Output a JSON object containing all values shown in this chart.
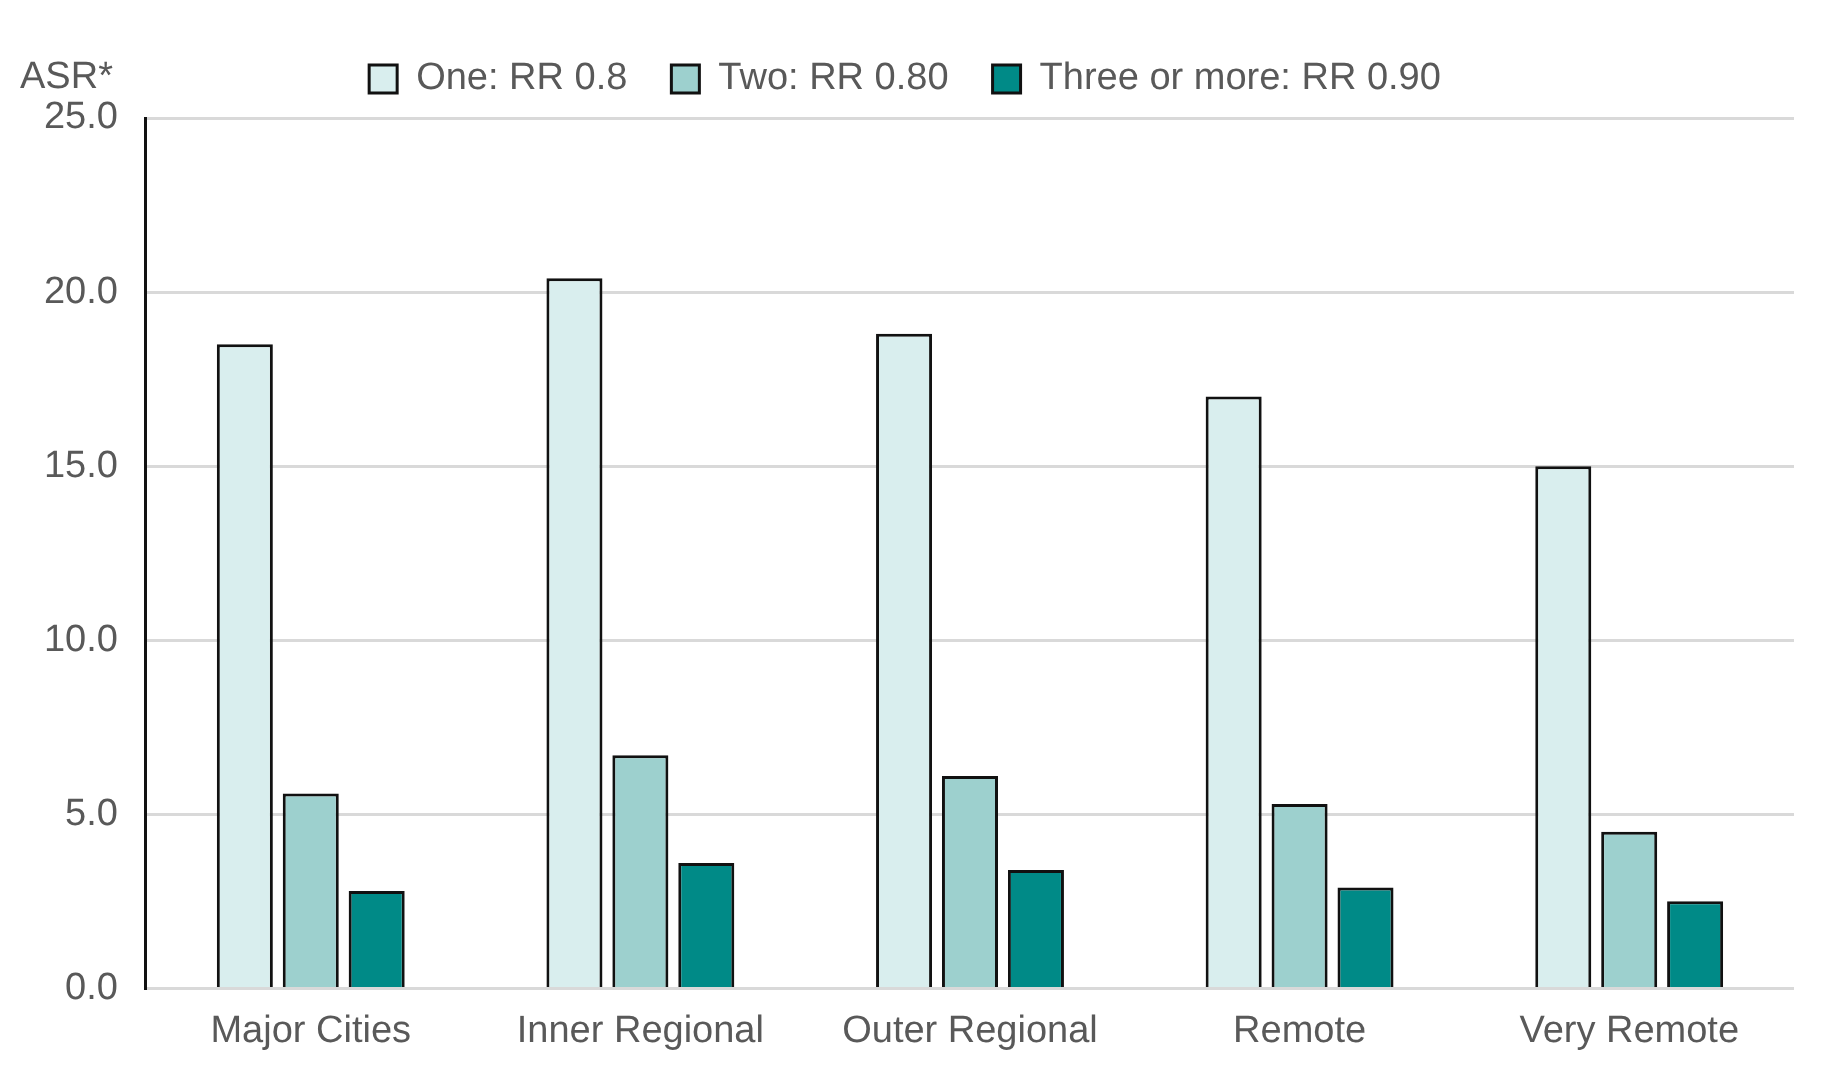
{
  "chart_data": {
    "type": "bar",
    "ylabel": "ASR*",
    "categories": [
      "Major Cities",
      "Inner Regional",
      "Outer Regional",
      "Remote",
      "Very Remote"
    ],
    "series": [
      {
        "name": "One: RR 0.8",
        "color": "#d9eeee",
        "values": [
          18.5,
          20.4,
          18.8,
          17.0,
          15.0
        ]
      },
      {
        "name": "Two: RR 0.80",
        "color": "#9dd0ce",
        "values": [
          5.6,
          6.7,
          6.1,
          5.3,
          4.5
        ]
      },
      {
        "name": "Three or more: RR 0.90",
        "color": "#008a87",
        "values": [
          2.8,
          3.6,
          3.4,
          2.9,
          2.5
        ]
      }
    ],
    "ylim": [
      0,
      25
    ],
    "yticks": [
      {
        "value": 0,
        "label": "0.0"
      },
      {
        "value": 5,
        "label": "5.0"
      },
      {
        "value": 10,
        "label": "10.0"
      },
      {
        "value": 15,
        "label": "15.0"
      },
      {
        "value": 20,
        "label": "20.0"
      },
      {
        "value": 25,
        "label": "25.0"
      }
    ],
    "grid": "y",
    "legend": "top"
  }
}
